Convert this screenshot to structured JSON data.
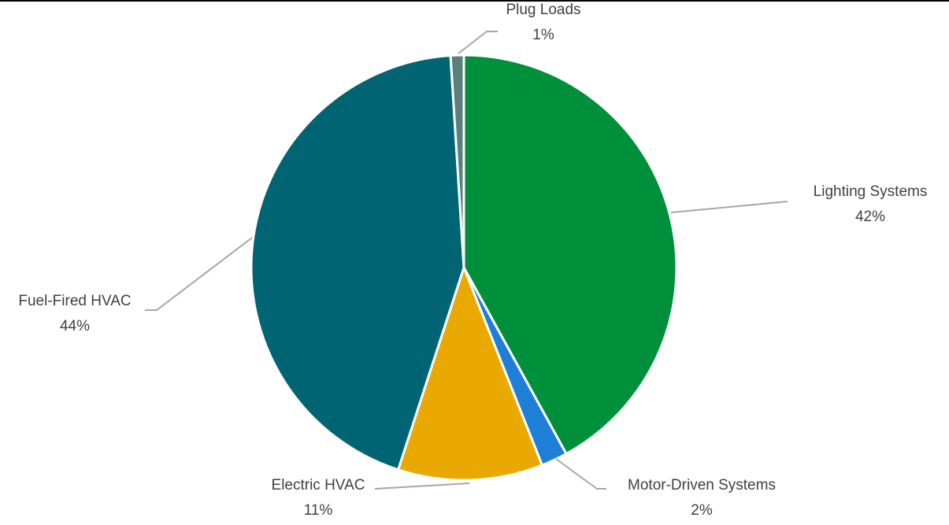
{
  "chart_data": {
    "type": "pie",
    "title": "",
    "slices": [
      {
        "label": "Lighting Systems",
        "value": 42,
        "value_label": "42%",
        "color": "#008f3a"
      },
      {
        "label": "Motor-Driven Systems",
        "value": 2,
        "value_label": "2%",
        "color": "#1e7fd6"
      },
      {
        "label": "Electric HVAC",
        "value": 11,
        "value_label": "11%",
        "color": "#eaa900"
      },
      {
        "label": "Fuel-Fired HVAC",
        "value": 44,
        "value_label": "44%",
        "color": "#006472"
      },
      {
        "label": "Plug Loads",
        "value": 1,
        "value_label": "1%",
        "color": "#5b7f7c"
      }
    ],
    "start_angle": "12 o'clock",
    "direction": "clockwise",
    "legend": "none",
    "data_labels": "outside with leader lines"
  }
}
